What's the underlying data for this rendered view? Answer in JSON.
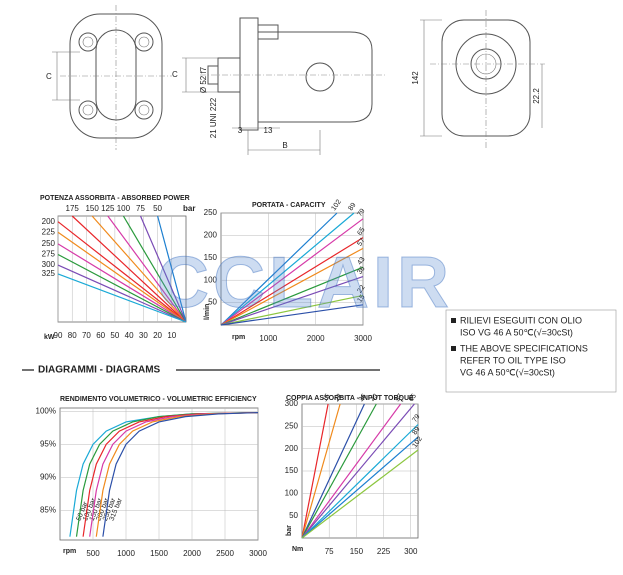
{
  "drawing": {
    "labels": [
      "C",
      "C",
      "Ø 52 f7",
      "21 UNI 222",
      "3",
      "13",
      "B",
      "142",
      "22.2"
    ]
  },
  "section_title": "DIAGRAMMI - DIAGRAMS",
  "notes": [
    [
      "RILIEVI ESEGUITI CON OLIO",
      "ISO VG 46 A 50℃(√=30cSt)"
    ],
    [
      "THE ABOVE SPECIFICATIONS",
      "REFER TO OIL TYPE ISO",
      "VG 46 A 50℃(√=30cSt)"
    ]
  ],
  "watermark": "CCLAIR",
  "chart_data": [
    {
      "type": "line",
      "title": "POTENZA ASSORBITA - ABSORBED POWER",
      "xlabel": "kW",
      "top_label": "bar",
      "xlim": [
        90,
        0
      ],
      "xticks": [
        90,
        80,
        70,
        60,
        50,
        40,
        30,
        20,
        10
      ],
      "ylim": [
        0,
        3000
      ],
      "grid": true,
      "series": [
        {
          "name": "175",
          "color": "#e8262a",
          "x": [
            80,
            0
          ],
          "values": [
            3000,
            0
          ]
        },
        {
          "name": "150",
          "color": "#f08a1c",
          "x": [
            66,
            0
          ],
          "values": [
            3000,
            0
          ]
        },
        {
          "name": "125",
          "color": "#d63aa8",
          "x": [
            55,
            0
          ],
          "values": [
            3000,
            0
          ]
        },
        {
          "name": "100",
          "color": "#2a9a3c",
          "x": [
            44,
            0
          ],
          "values": [
            3000,
            0
          ]
        },
        {
          "name": "75",
          "color": "#7a4bb5",
          "x": [
            32,
            0
          ],
          "values": [
            3000,
            0
          ]
        },
        {
          "name": "50",
          "color": "#1c7fd0",
          "x": [
            20,
            0
          ],
          "values": [
            3000,
            0
          ]
        },
        {
          "name": "200",
          "color": "#e8262a",
          "x": [
            90,
            0
          ],
          "values": [
            2840,
            0
          ]
        },
        {
          "name": "225",
          "color": "#f08a1c",
          "x": [
            90,
            0
          ],
          "values": [
            2540,
            0
          ]
        },
        {
          "name": "250",
          "color": "#d63aa8",
          "x": [
            90,
            0
          ],
          "values": [
            2210,
            0
          ]
        },
        {
          "name": "275",
          "color": "#2a9a3c",
          "x": [
            90,
            0
          ],
          "values": [
            1910,
            0
          ]
        },
        {
          "name": "300",
          "color": "#7a4bb5",
          "x": [
            90,
            0
          ],
          "values": [
            1610,
            0
          ]
        },
        {
          "name": "325",
          "color": "#19a9d6",
          "x": [
            90,
            0
          ],
          "values": [
            1360,
            0
          ]
        }
      ]
    },
    {
      "type": "line",
      "title": "PORTATA - CAPACITY",
      "xlabel": "rpm",
      "ylabel": "l/min",
      "xlim": [
        0,
        3000
      ],
      "xticks": [
        1000,
        2000,
        3000
      ],
      "ylim": [
        0,
        250
      ],
      "yticks": [
        250,
        200,
        150,
        100,
        50
      ],
      "grid": true,
      "series": [
        {
          "name": "102",
          "color": "#1c7fd0",
          "x": [
            0,
            2450
          ],
          "values": [
            0,
            250
          ]
        },
        {
          "name": "89",
          "color": "#19a9d6",
          "x": [
            0,
            2810
          ],
          "values": [
            0,
            250
          ]
        },
        {
          "name": "79",
          "color": "#d63aa8",
          "x": [
            0,
            3000
          ],
          "values": [
            0,
            237
          ]
        },
        {
          "name": "65",
          "color": "#e8262a",
          "x": [
            0,
            3000
          ],
          "values": [
            0,
            195
          ]
        },
        {
          "name": "57",
          "color": "#f08a1c",
          "x": [
            0,
            3000
          ],
          "values": [
            0,
            171
          ]
        },
        {
          "name": "43",
          "color": "#2a9a3c",
          "x": [
            0,
            3000
          ],
          "values": [
            0,
            129
          ]
        },
        {
          "name": "36",
          "color": "#7a4bb5",
          "x": [
            0,
            3000
          ],
          "values": [
            0,
            108
          ]
        },
        {
          "name": "22",
          "color": "#8cc63f",
          "x": [
            0,
            3000
          ],
          "values": [
            0,
            66
          ]
        },
        {
          "name": "15",
          "color": "#2b4fa8",
          "x": [
            0,
            3000
          ],
          "values": [
            0,
            45
          ]
        }
      ]
    },
    {
      "type": "line",
      "title": "RENDIMENTO VOLUMETRICO - VOLUMETRIC EFFICIENCY",
      "xlabel": "rpm",
      "xlim": [
        0,
        3000
      ],
      "xticks": [
        500,
        1000,
        1500,
        2000,
        2500,
        3000
      ],
      "ylim": [
        80.5,
        100.5
      ],
      "yticks": [
        {
          "value": 100,
          "label": "100%"
        },
        {
          "value": 95,
          "label": "95%"
        },
        {
          "value": 90,
          "label": "90%"
        },
        {
          "value": 85,
          "label": "85%"
        }
      ],
      "grid": true,
      "series": [
        {
          "name": "50 bar",
          "color": "#19a9d6",
          "x": [
            150,
            250,
            350,
            500,
            700,
            1000,
            1500,
            2000,
            3000
          ],
          "values": [
            81,
            88,
            92,
            95,
            97,
            98.4,
            99.2,
            99.6,
            99.8
          ]
        },
        {
          "name": "100 bar",
          "color": "#2a9a3c",
          "x": [
            250,
            350,
            450,
            600,
            800,
            1100,
            1500,
            2000,
            3000
          ],
          "values": [
            81,
            88,
            92,
            95,
            97,
            98.4,
            99.2,
            99.6,
            99.8
          ]
        },
        {
          "name": "150 bar",
          "color": "#e8262a",
          "x": [
            350,
            450,
            550,
            700,
            900,
            1200,
            1600,
            2100,
            3000
          ],
          "values": [
            81,
            88,
            92,
            95,
            97,
            98.4,
            99.2,
            99.6,
            99.8
          ]
        },
        {
          "name": "200 bar",
          "color": "#d63aa8",
          "x": [
            450,
            550,
            650,
            800,
            1000,
            1300,
            1700,
            2200,
            3000
          ],
          "values": [
            81,
            88,
            92,
            95,
            97,
            98.4,
            99.2,
            99.6,
            99.8
          ]
        },
        {
          "name": "250 bar",
          "color": "#f08a1c",
          "x": [
            550,
            650,
            750,
            900,
            1100,
            1400,
            1800,
            2300,
            3000
          ],
          "values": [
            81,
            88,
            92,
            95,
            97,
            98.4,
            99.2,
            99.6,
            99.8
          ]
        },
        {
          "name": "315 bar",
          "color": "#2b4fa8",
          "x": [
            650,
            750,
            850,
            1000,
            1200,
            1500,
            1900,
            2400,
            3000
          ],
          "values": [
            81,
            88,
            92,
            95,
            97,
            98.4,
            99.2,
            99.6,
            99.8
          ]
        }
      ]
    },
    {
      "type": "line",
      "title": "COPPIA ASSORBITA - INPUT TORQUE",
      "xlabel": "Nm",
      "ylabel": "bar",
      "xlim": [
        0,
        320
      ],
      "xticks": [
        75,
        150,
        225,
        300
      ],
      "ylim": [
        0,
        300
      ],
      "yticks": [
        300,
        250,
        200,
        150,
        100,
        50
      ],
      "grid": true,
      "series": [
        {
          "name": "15",
          "color": "#e8262a",
          "x": [
            0,
            72
          ],
          "values": [
            0,
            300
          ]
        },
        {
          "name": "22",
          "color": "#f08a1c",
          "x": [
            0,
            105
          ],
          "values": [
            0,
            300
          ]
        },
        {
          "name": "36",
          "color": "#2b4fa8",
          "x": [
            0,
            172
          ],
          "values": [
            0,
            300
          ]
        },
        {
          "name": "43",
          "color": "#2a9a3c",
          "x": [
            0,
            205
          ],
          "values": [
            0,
            300
          ]
        },
        {
          "name": "57",
          "color": "#d63aa8",
          "x": [
            0,
            272
          ],
          "values": [
            0,
            300
          ]
        },
        {
          "name": "65",
          "color": "#7a4bb5",
          "x": [
            0,
            310
          ],
          "values": [
            0,
            300
          ]
        },
        {
          "name": "79",
          "color": "#19a9d6",
          "x": [
            0,
            320
          ],
          "values": [
            0,
            254
          ]
        },
        {
          "name": "89",
          "color": "#1c7fd0",
          "x": [
            0,
            320
          ],
          "values": [
            0,
            226
          ]
        },
        {
          "name": "102",
          "color": "#8cc63f",
          "x": [
            0,
            320
          ],
          "values": [
            0,
            197
          ]
        }
      ]
    }
  ]
}
